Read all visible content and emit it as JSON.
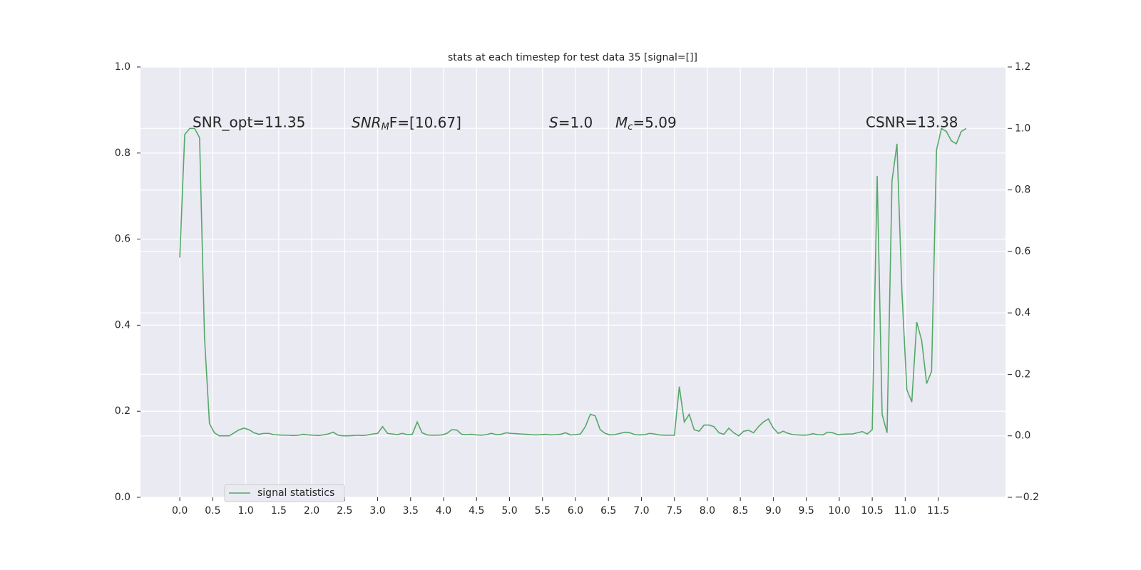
{
  "chart_data": {
    "type": "line",
    "title": "stats at each timestep for test data 35 [signal=[]]",
    "annotations": [
      [
        "SNR_opt=11.35"
      ],
      [
        "SNR",
        "M",
        "F=[10.67]"
      ],
      [
        "S",
        "=1.0"
      ],
      [
        "M",
        "c",
        "=5.09"
      ],
      [
        "CSNR=13.38"
      ]
    ],
    "x": [
      0,
      0.075,
      0.15,
      0.225,
      0.3,
      0.375,
      0.45,
      0.525,
      0.6,
      0.675,
      0.75,
      0.825,
      0.9,
      0.975,
      1.05,
      1.125,
      1.2,
      1.275,
      1.35,
      1.425,
      1.5,
      1.575,
      1.65,
      1.725,
      1.8,
      1.875,
      1.95,
      2.025,
      2.1,
      2.175,
      2.25,
      2.325,
      2.4,
      2.475,
      2.55,
      2.625,
      2.7,
      2.775,
      2.85,
      2.925,
      3,
      3.075,
      3.15,
      3.225,
      3.3,
      3.375,
      3.45,
      3.525,
      3.6,
      3.675,
      3.75,
      3.825,
      3.9,
      3.975,
      4.05,
      4.125,
      4.2,
      4.275,
      4.35,
      4.425,
      4.5,
      4.575,
      4.65,
      4.725,
      4.8,
      4.875,
      4.95,
      5.025,
      5.1,
      5.175,
      5.25,
      5.325,
      5.4,
      5.475,
      5.55,
      5.625,
      5.7,
      5.775,
      5.85,
      5.925,
      6,
      6.075,
      6.15,
      6.225,
      6.3,
      6.375,
      6.45,
      6.525,
      6.6,
      6.675,
      6.75,
      6.825,
      6.9,
      6.975,
      7.05,
      7.125,
      7.2,
      7.275,
      7.35,
      7.425,
      7.5,
      7.575,
      7.65,
      7.725,
      7.8,
      7.875,
      7.95,
      8.025,
      8.1,
      8.175,
      8.25,
      8.325,
      8.4,
      8.475,
      8.55,
      8.625,
      8.7,
      8.775,
      8.85,
      8.925,
      9,
      9.075,
      9.15,
      9.225,
      9.3,
      9.375,
      9.45,
      9.525,
      9.6,
      9.675,
      9.75,
      9.825,
      9.9,
      9.975,
      10.05,
      10.125,
      10.2,
      10.275,
      10.35,
      10.425,
      10.5,
      10.575,
      10.65,
      10.725,
      10.8,
      10.875,
      10.95,
      11.025,
      11.1,
      11.175,
      11.25,
      11.325,
      11.4,
      11.475,
      11.55,
      11.625,
      11.7,
      11.775,
      11.85,
      11.925
    ],
    "series": [
      {
        "name": "signal statistics",
        "color": "#55a868",
        "axis": "y2",
        "values": [
          0.58,
          0.98,
          1.0,
          1.0,
          0.97,
          0.32,
          0.04,
          0.01,
          0.0,
          0.0,
          0.0,
          0.01,
          0.02,
          0.025,
          0.02,
          0.01,
          0.005,
          0.008,
          0.008,
          0.004,
          0.003,
          0.002,
          0.002,
          0.001,
          0.002,
          0.005,
          0.003,
          0.002,
          0.001,
          0.003,
          0.006,
          0.012,
          0.002,
          0.0,
          0.0,
          0.001,
          0.002,
          0.001,
          0.003,
          0.006,
          0.008,
          0.03,
          0.008,
          0.006,
          0.004,
          0.008,
          0.004,
          0.005,
          0.045,
          0.01,
          0.003,
          0.002,
          0.002,
          0.003,
          0.008,
          0.02,
          0.019,
          0.005,
          0.004,
          0.005,
          0.003,
          0.002,
          0.004,
          0.008,
          0.004,
          0.005,
          0.01,
          0.008,
          0.007,
          0.006,
          0.005,
          0.004,
          0.003,
          0.004,
          0.005,
          0.003,
          0.004,
          0.005,
          0.01,
          0.003,
          0.004,
          0.006,
          0.03,
          0.07,
          0.065,
          0.02,
          0.008,
          0.003,
          0.004,
          0.008,
          0.012,
          0.01,
          0.004,
          0.003,
          0.004,
          0.008,
          0.006,
          0.003,
          0.002,
          0.002,
          0.002,
          0.16,
          0.045,
          0.07,
          0.02,
          0.015,
          0.035,
          0.035,
          0.03,
          0.01,
          0.005,
          0.025,
          0.01,
          0.0,
          0.015,
          0.018,
          0.01,
          0.03,
          0.045,
          0.055,
          0.025,
          0.008,
          0.015,
          0.008,
          0.004,
          0.003,
          0.002,
          0.003,
          0.007,
          0.004,
          0.003,
          0.012,
          0.01,
          0.004,
          0.005,
          0.006,
          0.006,
          0.01,
          0.014,
          0.006,
          0.02,
          0.845,
          0.07,
          0.01,
          0.83,
          0.95,
          0.47,
          0.15,
          0.11,
          0.37,
          0.31,
          0.17,
          0.21,
          0.93,
          1.0,
          0.99,
          0.96,
          0.95,
          0.99,
          1.0
        ]
      }
    ],
    "xlim": [
      -0.596,
      12.521
    ],
    "xticks": [
      {
        "value": 0,
        "label": "0.0"
      },
      0.5,
      {
        "value": 1,
        "label": "1.0"
      },
      1.5,
      {
        "value": 2,
        "label": "2.0"
      },
      2.5,
      {
        "value": 3,
        "label": "3.0"
      },
      3.5,
      {
        "value": 4,
        "label": "4.0"
      },
      4.5,
      {
        "value": 5,
        "label": "5.0"
      },
      5.5,
      {
        "value": 6,
        "label": "6.0"
      },
      6.5,
      {
        "value": 7,
        "label": "7.0"
      },
      7.5,
      {
        "value": 8,
        "label": "8.0"
      },
      8.5,
      {
        "value": 9,
        "label": "9.0"
      },
      9.5,
      {
        "value": 10,
        "label": "10.0"
      },
      10.5,
      {
        "value": 11,
        "label": "11.0"
      },
      11.5
    ],
    "ylim": [
      0,
      1
    ],
    "yticks": [
      {
        "value": 0,
        "label": "0.0"
      },
      0.2,
      0.4,
      0.6,
      0.8,
      {
        "value": 1,
        "label": "1.0"
      }
    ],
    "y2lim": [
      -0.2,
      1.2
    ],
    "y2ticks": [
      {
        "value": -0.2,
        "label": "−0.2"
      },
      {
        "value": 0,
        "label": "0.0"
      },
      0.2,
      0.4,
      0.6,
      0.8,
      {
        "value": 1,
        "label": "1.0"
      },
      1.2
    ],
    "grid": true,
    "legend": "lower left",
    "background": "#eaeaf2"
  }
}
